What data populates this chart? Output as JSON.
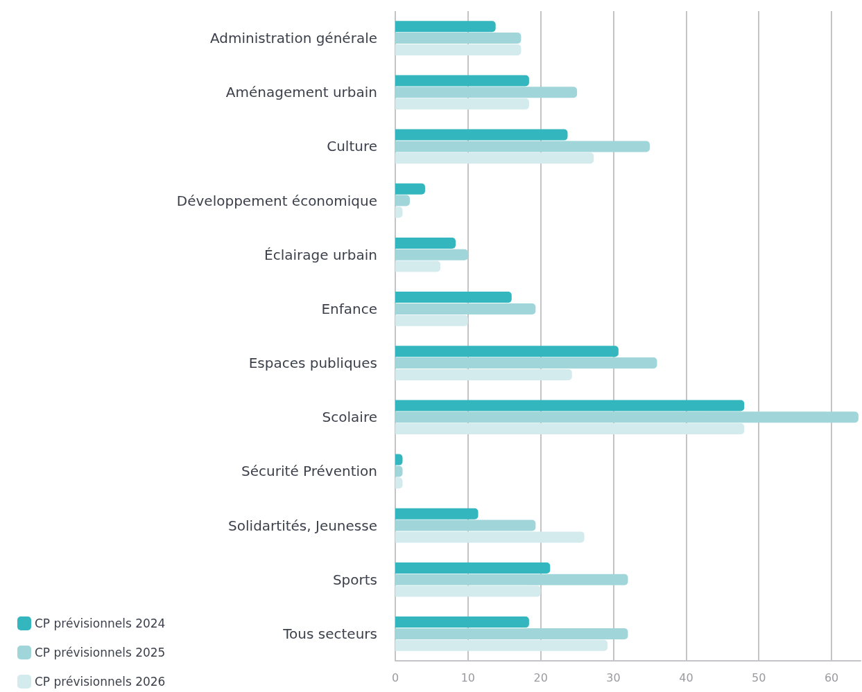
{
  "chart_data": {
    "type": "bar",
    "orientation": "horizontal",
    "categories": [
      "Administration générale",
      "Aménagement urbain",
      "Culture",
      "Développement économique",
      "Éclairage urbain",
      "Enfance",
      "Espaces publiques",
      "Scolaire",
      "Sécurité Prévention",
      "Solidartités, Jeunesse",
      "Sports",
      "Tous secteurs"
    ],
    "series": [
      {
        "name": "CP prévisionnels 2024",
        "color": "#33b6bd",
        "values": [
          13.8,
          18.4,
          23.7,
          4.1,
          8.3,
          16,
          30.7,
          48,
          1,
          11.4,
          21.3,
          18.4
        ]
      },
      {
        "name": "CP prévisionnels 2025",
        "color": "#a0d5d9",
        "values": [
          17.3,
          25,
          35,
          2,
          10,
          19.3,
          36,
          63.7,
          1,
          19.3,
          32,
          32
        ]
      },
      {
        "name": "CP prévisionnels 2026",
        "color": "#d3ebed",
        "values": [
          17.3,
          18.4,
          27.3,
          1,
          6.2,
          10,
          24.3,
          48,
          1,
          26,
          20,
          29.2
        ]
      }
    ],
    "xlim": [
      0,
      64
    ],
    "xticks": [
      0,
      10,
      20,
      30,
      40,
      50,
      60
    ],
    "grid": "x",
    "legend": "bottom left"
  }
}
